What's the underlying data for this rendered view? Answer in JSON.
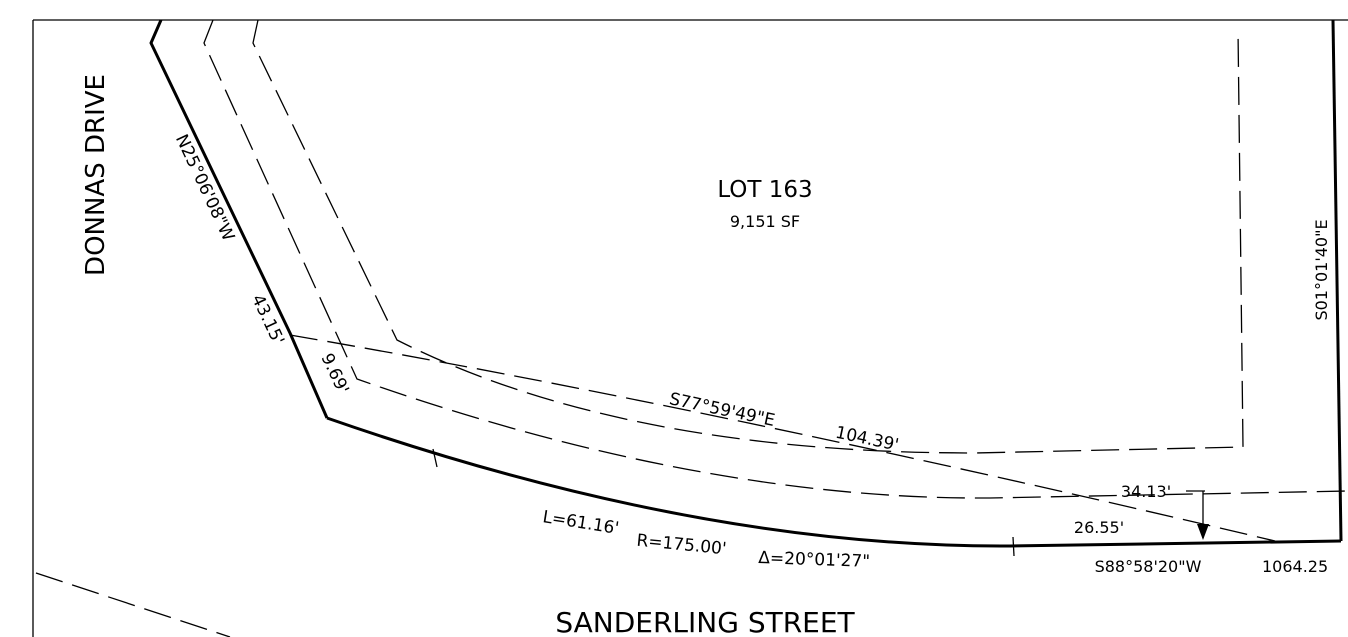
{
  "streets": {
    "left": "DONNAS DRIVE",
    "bottom": "SANDERLING STREET"
  },
  "lot": {
    "name": "LOT 163",
    "area": "9,151 SF"
  },
  "bearings": {
    "west_line": "N25°06'08\"W",
    "west_distance": "43.15'",
    "west_segment": "9.69'",
    "center_bearing": "S77°59'49\"E",
    "center_distance": "104.39'",
    "east_line": "S01°01'40\"E",
    "south_bearing": "S88°58'20\"W",
    "south_distance": "1064.25",
    "right_offset": "34.13'",
    "lower_offset": "26.55'"
  },
  "curve": {
    "length": "L=61.16'",
    "radius": "R=175.00'",
    "delta": "Δ=20°01'27\""
  },
  "colors": {
    "ink": "#000000",
    "paper": "#ffffff"
  }
}
